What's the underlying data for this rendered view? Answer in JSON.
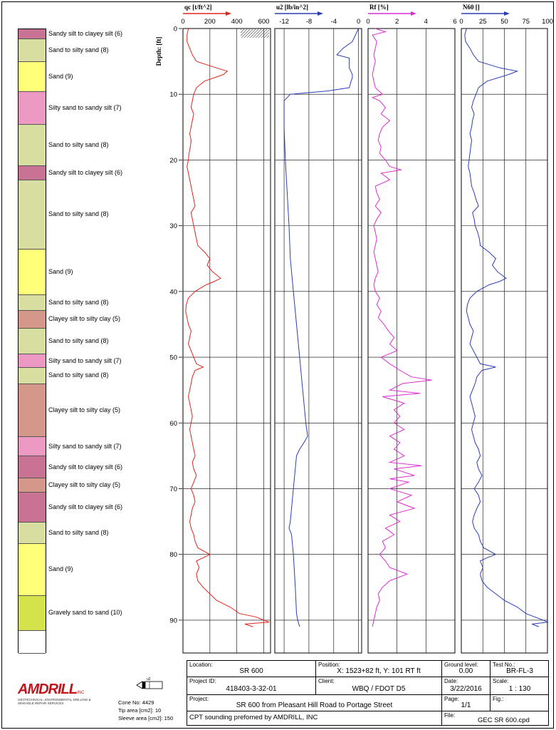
{
  "soil_layers": [
    {
      "label": "Sandy silt to clayey silt (6)",
      "from": 0,
      "to": 1.5,
      "color": "#c97394"
    },
    {
      "label": "Sand to silty sand (8)",
      "from": 1.5,
      "to": 5,
      "color": "#d7dea0"
    },
    {
      "label": "Sand (9)",
      "from": 5,
      "to": 9.5,
      "color": "#ffff7a"
    },
    {
      "label": "Silty sand to sandy silt (7)",
      "from": 9.5,
      "to": 14.5,
      "color": "#ec9ac4"
    },
    {
      "label": "Sand to silty sand (8)",
      "from": 14.5,
      "to": 20.8,
      "color": "#d7dea0"
    },
    {
      "label": "Sandy silt to clayey silt (6)",
      "from": 20.8,
      "to": 23,
      "color": "#c97394"
    },
    {
      "label": "Sand to silty sand (8)",
      "from": 23,
      "to": 33.5,
      "color": "#d7dea0"
    },
    {
      "label": "Sand (9)",
      "from": 33.5,
      "to": 40.5,
      "color": "#ffff7a"
    },
    {
      "label": "Sand to silty sand (8)",
      "from": 40.5,
      "to": 42.8,
      "color": "#d7dea0"
    },
    {
      "label": "Clayey silt to silty clay (5)",
      "from": 42.8,
      "to": 45.5,
      "color": "#d4988a"
    },
    {
      "label": "Sand to silty sand (8)",
      "from": 45.5,
      "to": 49.5,
      "color": "#d7dea0"
    },
    {
      "label": "Silty sand to sandy silt (7)",
      "from": 49.5,
      "to": 51.5,
      "color": "#ec9ac4"
    },
    {
      "label": "Sand to silty sand (8)",
      "from": 51.5,
      "to": 54,
      "color": "#d7dea0"
    },
    {
      "label": "Clayey silt to silty clay (5)",
      "from": 54,
      "to": 62,
      "color": "#d4988a"
    },
    {
      "label": "Silty sand to sandy silt (7)",
      "from": 62,
      "to": 65,
      "color": "#ec9ac4"
    },
    {
      "label": "Sandy silt to clayey silt (6)",
      "from": 65,
      "to": 68.3,
      "color": "#c97394"
    },
    {
      "label": "Clayey silt to silty clay (5)",
      "from": 68.3,
      "to": 70.5,
      "color": "#d4988a"
    },
    {
      "label": "Sandy silt to clayey silt (6)",
      "from": 70.5,
      "to": 75,
      "color": "#c97394"
    },
    {
      "label": "Sand to silty sand (8)",
      "from": 75,
      "to": 78.3,
      "color": "#d7dea0"
    },
    {
      "label": "Sand (9)",
      "from": 78.3,
      "to": 86.2,
      "color": "#ffff7a"
    },
    {
      "label": "Gravely sand to sand (10)",
      "from": 86.2,
      "to": 91.5,
      "color": "#d4e34c"
    },
    {
      "label": "",
      "from": 91.5,
      "to": 95,
      "color": "#ffffff"
    }
  ],
  "depth_axis": {
    "label": "Depth: [ft]",
    "min": 0,
    "max": 95,
    "ticks": [
      0,
      10,
      20,
      30,
      40,
      50,
      60,
      70,
      80,
      90
    ]
  },
  "chart_data": [
    {
      "type": "line",
      "title": "qc [t/ft^2]",
      "xlim": [
        0,
        650
      ],
      "ticks": [
        0,
        200,
        400,
        600
      ],
      "color": "#e0261b",
      "series": [
        {
          "name": "qc",
          "depth": [
            0,
            1,
            2,
            3,
            4,
            5,
            6,
            6.5,
            7,
            8,
            9,
            10,
            11,
            12,
            13,
            14,
            15,
            16,
            17,
            18,
            19,
            20,
            21,
            22,
            23,
            24,
            25,
            26,
            27,
            28,
            29,
            30,
            31,
            32,
            33,
            34,
            35,
            36,
            37,
            38,
            38.5,
            39,
            40,
            41,
            42,
            43,
            44,
            45,
            46,
            47,
            48,
            49,
            50,
            51,
            51.5,
            52,
            53,
            54,
            55,
            56,
            57,
            58,
            59,
            60,
            61,
            62,
            63,
            64,
            65,
            66,
            67,
            68,
            69,
            70,
            71,
            72,
            73,
            74,
            75,
            76,
            77,
            78,
            79,
            80,
            80.5,
            81,
            82,
            83,
            84,
            85,
            86,
            87,
            88,
            89,
            89.5,
            90,
            90.3,
            90.6,
            91
          ],
          "values": [
            40,
            30,
            30,
            50,
            70,
            100,
            250,
            330,
            300,
            160,
            100,
            80,
            70,
            60,
            80,
            70,
            60,
            50,
            60,
            55,
            45,
            40,
            30,
            40,
            50,
            60,
            70,
            80,
            90,
            60,
            70,
            80,
            90,
            100,
            110,
            160,
            200,
            180,
            220,
            280,
            230,
            170,
            90,
            40,
            25,
            20,
            30,
            40,
            60,
            50,
            40,
            60,
            80,
            100,
            150,
            90,
            70,
            60,
            50,
            40,
            50,
            60,
            70,
            60,
            50,
            60,
            70,
            80,
            90,
            70,
            80,
            100,
            80,
            60,
            80,
            90,
            70,
            60,
            50,
            60,
            80,
            90,
            110,
            200,
            150,
            100,
            120,
            100,
            110,
            150,
            200,
            250,
            350,
            420,
            540,
            600,
            640,
            460,
            520,
            600
          ]
        }
      ]
    },
    {
      "type": "line",
      "title": "u2 [lb/in^2]",
      "xlim": [
        -13.5,
        0.5
      ],
      "ticks": [
        -12,
        -8,
        -4,
        0
      ],
      "color": "#2b3fb3",
      "series": [
        {
          "name": "u2",
          "depth": [
            0,
            1,
            2,
            3,
            4,
            4.5,
            5,
            6,
            7,
            7.5,
            8,
            9,
            9.5,
            10,
            11,
            15,
            20,
            25,
            30,
            35,
            40,
            45,
            50,
            55,
            60,
            62,
            63,
            64,
            65,
            70,
            75,
            76,
            77,
            80,
            85,
            89,
            90,
            91
          ],
          "values": [
            0,
            -0.5,
            -1,
            -2.5,
            -3.5,
            -1.5,
            -1.5,
            -1.5,
            -1,
            -1,
            -1.2,
            -1.5,
            -5,
            -11,
            -12,
            -12,
            -11.8,
            -11.5,
            -11.2,
            -11,
            -10.5,
            -10,
            -9.5,
            -9,
            -8.5,
            -8.2,
            -8.8,
            -9.5,
            -10,
            -10.5,
            -11,
            -11.2,
            -10.8,
            -10.5,
            -10.2,
            -10,
            -9.8,
            -9.5
          ]
        }
      ]
    },
    {
      "type": "line",
      "title": "Rf [%]",
      "xlim": [
        0,
        6
      ],
      "ticks": [
        0,
        2,
        4,
        6
      ],
      "color": "#d92fcf",
      "series": [
        {
          "name": "Rf",
          "depth": [
            0,
            0.5,
            1,
            2,
            3,
            4,
            5,
            6,
            7,
            8,
            9,
            10,
            10.5,
            11,
            12,
            13,
            14,
            15,
            16,
            17,
            18,
            19,
            20,
            21,
            21.5,
            22,
            23,
            24,
            25,
            26,
            27,
            28,
            29,
            30,
            31,
            32,
            33,
            34,
            35,
            36,
            37,
            38,
            39,
            40,
            41,
            42,
            43,
            44,
            45,
            46,
            47,
            48,
            49,
            50,
            51,
            52,
            53,
            53.5,
            54,
            55,
            55.5,
            56,
            57,
            58,
            59,
            60,
            61,
            62,
            63,
            64,
            65,
            66,
            66.5,
            67,
            68,
            68.5,
            69,
            70,
            71,
            72,
            73,
            74,
            75,
            76,
            77,
            78,
            79,
            80,
            81,
            82,
            83,
            84,
            85,
            86,
            87,
            88,
            89,
            90,
            91
          ],
          "values": [
            0.5,
            1.2,
            0.3,
            0.6,
            0.5,
            0.4,
            0.5,
            0.4,
            0.3,
            0.4,
            0.5,
            1.0,
            0.3,
            0.8,
            1.2,
            0.9,
            1.5,
            1.0,
            0.8,
            0.7,
            0.9,
            0.8,
            1.2,
            1.5,
            2.3,
            0.9,
            1.5,
            0.5,
            0.6,
            0.8,
            0.5,
            0.9,
            0.6,
            0.4,
            0.5,
            0.6,
            0.5,
            0.4,
            0.5,
            0.6,
            0.7,
            0.5,
            0.4,
            0.5,
            0.8,
            0.6,
            0.9,
            0.7,
            1.1,
            1.4,
            1.8,
            1.5,
            2.0,
            0.9,
            1.5,
            2.2,
            3.0,
            4.4,
            2.4,
            1.5,
            3.6,
            1.0,
            2.5,
            1.8,
            2.2,
            1.8,
            2.5,
            1.5,
            2.2,
            1.8,
            2.5,
            1.5,
            3.7,
            1.8,
            3.2,
            1.5,
            2.8,
            1.5,
            3.0,
            2.0,
            3.2,
            1.5,
            2.2,
            1.2,
            1.8,
            1.0,
            1.2,
            0.8,
            1.2,
            1.5,
            2.7,
            1.5,
            1.0,
            0.7,
            0.8,
            0.6,
            0.5,
            0.4,
            0.3,
            0.3,
            0.4
          ]
        }
      ]
    },
    {
      "type": "line",
      "title": "N60 []",
      "xlim": [
        0,
        100
      ],
      "ticks": [
        0,
        25,
        50,
        75,
        100
      ],
      "color": "#2b3fb3",
      "series": [
        {
          "name": "N60",
          "depth": [
            0,
            1,
            2,
            3,
            4,
            5,
            6,
            6.5,
            7,
            8,
            9,
            10,
            11,
            12,
            13,
            14,
            15,
            16,
            17,
            18,
            19,
            20,
            21,
            22,
            23,
            24,
            25,
            26,
            27,
            28,
            29,
            30,
            31,
            32,
            33,
            34,
            35,
            36,
            37,
            38,
            38.5,
            39,
            40,
            41,
            42,
            43,
            44,
            45,
            46,
            47,
            48,
            49,
            50,
            51,
            51.5,
            52,
            53,
            54,
            55,
            56,
            57,
            58,
            59,
            60,
            61,
            62,
            63,
            64,
            65,
            66,
            67,
            68,
            69,
            70,
            71,
            72,
            73,
            74,
            75,
            76,
            77,
            78,
            79,
            80,
            80.5,
            81,
            82,
            83,
            84,
            85,
            86,
            87,
            88,
            89,
            89.5,
            90,
            90.3,
            90.6,
            91
          ],
          "values": [
            6,
            4,
            5,
            10,
            14,
            20,
            45,
            65,
            55,
            30,
            20,
            17,
            14,
            12,
            15,
            13,
            12,
            10,
            12,
            11,
            10,
            9,
            8,
            10,
            11,
            12,
            15,
            17,
            20,
            13,
            15,
            16,
            19,
            21,
            22,
            32,
            40,
            36,
            42,
            52,
            44,
            32,
            18,
            10,
            7,
            6,
            8,
            10,
            14,
            12,
            10,
            14,
            18,
            22,
            40,
            24,
            18,
            16,
            13,
            10,
            12,
            14,
            16,
            14,
            12,
            14,
            16,
            20,
            22,
            18,
            20,
            24,
            20,
            15,
            20,
            22,
            18,
            15,
            13,
            15,
            20,
            22,
            26,
            40,
            30,
            22,
            25,
            22,
            24,
            30,
            40,
            50,
            65,
            75,
            85,
            95,
            100,
            82,
            90,
            100
          ]
        }
      ]
    }
  ],
  "info_table": {
    "location_label": "Location:",
    "location": "SR 600",
    "position_label": "Position:",
    "position": "X: 1523+82 ft, Y: 101 RT ft",
    "ground_label": "Ground level:",
    "ground": "0.00",
    "test_label": "Test No.:",
    "test": "BR-FL-3",
    "project_id_label": "Project ID:",
    "project_id": "418403-3-32-01",
    "client_label": "Client:",
    "client": "WBQ / FDOT D5",
    "date_label": "Date:",
    "date": "3/22/2016",
    "scale_label": "Scale:",
    "scale": "1 : 130",
    "project_label": "Project:",
    "project": "SR 600 from Pleasant Hill Road to Portage Street",
    "page_label": "Page:",
    "page": "1/1",
    "fig_label": "Fig.:",
    "note": "CPT sounding prefomed by AMDRILL, INC",
    "file_label": "File:",
    "file": "GEC SR 600.cpd"
  },
  "cone": {
    "cone_no": "Cone No: 4429",
    "tip_area": "Tip area [cm2]: 10",
    "sleeve_area": "Sleeve area [cm2]: 150",
    "label": "u2"
  },
  "logo": {
    "name": "AMDRILL",
    "suffix": "INC",
    "tagline": "GEOTECHNICAL, ENVIRONMENTAL DRILLING & SINKHOLE REPAIR SERVICES"
  }
}
